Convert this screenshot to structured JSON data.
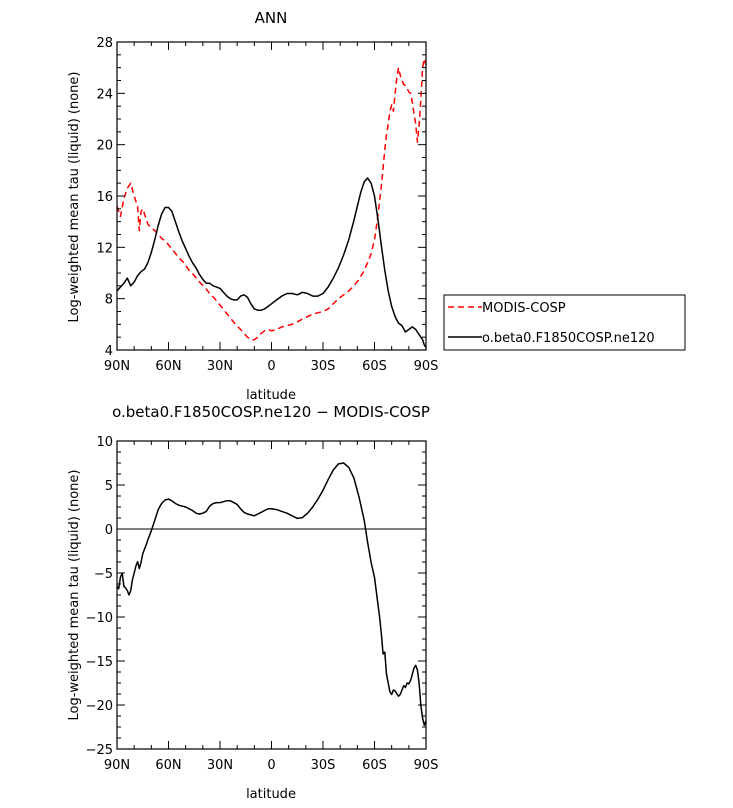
{
  "chart_data": [
    {
      "type": "line",
      "title": "ANN",
      "xlabel": "latitude",
      "ylabel": "Log-weighted mean tau (liquid) (none)",
      "xlim": [
        90,
        -90
      ],
      "ylim": [
        4,
        28
      ],
      "xticks": [
        90,
        60,
        30,
        0,
        -30,
        -60,
        -90
      ],
      "xtick_labels": [
        "90N",
        "60N",
        "30N",
        "0",
        "30S",
        "60S",
        "90S"
      ],
      "yticks": [
        4,
        8,
        12,
        16,
        20,
        24,
        28
      ],
      "ytick_labels": [
        "4",
        "8",
        "12",
        "16",
        "20",
        "24",
        "28"
      ],
      "legend_position": "right",
      "series": [
        {
          "name": "MODIS-COSP",
          "color": "#ff0000",
          "dash": "dashed",
          "x": [
            90,
            88,
            86,
            84,
            82,
            80,
            78,
            77,
            76,
            75,
            74,
            73,
            72,
            70,
            68,
            66,
            64,
            62,
            60,
            57,
            54,
            51,
            48,
            45,
            42,
            39,
            36,
            33,
            30,
            27,
            24,
            21,
            18,
            16,
            14,
            12,
            10,
            8,
            6,
            4,
            2,
            0,
            -3,
            -6,
            -9,
            -12,
            -15,
            -18,
            -21,
            -24,
            -27,
            -30,
            -33,
            -36,
            -39,
            -42,
            -45,
            -48,
            -51,
            -54,
            -56,
            -58,
            -60,
            -61,
            -62,
            -63,
            -64,
            -65,
            -66,
            -67,
            -68,
            -69,
            -70,
            -71,
            -72,
            -73,
            -74,
            -75,
            -76,
            -77,
            -78,
            -79,
            -80,
            -81,
            -82,
            -83,
            -84,
            -85,
            -86,
            -87,
            -88,
            -89,
            -90
          ],
          "y": [
            15.2,
            14.4,
            15.8,
            16.6,
            17.0,
            16.0,
            15.2,
            13.3,
            14.8,
            15.0,
            14.6,
            14.2,
            13.8,
            13.5,
            13.3,
            13.0,
            12.7,
            12.5,
            12.2,
            11.7,
            11.2,
            10.8,
            10.2,
            9.8,
            9.3,
            8.9,
            8.4,
            8.0,
            7.5,
            7.0,
            6.5,
            6.0,
            5.6,
            5.3,
            5.0,
            4.8,
            4.8,
            5.0,
            5.3,
            5.5,
            5.6,
            5.5,
            5.6,
            5.8,
            5.9,
            6.0,
            6.2,
            6.4,
            6.6,
            6.8,
            6.9,
            7.0,
            7.2,
            7.6,
            8.0,
            8.3,
            8.6,
            9.0,
            9.5,
            10.2,
            10.8,
            11.5,
            12.6,
            13.5,
            14.5,
            15.6,
            16.8,
            18.2,
            19.6,
            20.8,
            21.6,
            22.6,
            23.1,
            22.6,
            24.0,
            25.2,
            26.0,
            25.4,
            25.0,
            24.7,
            24.6,
            24.4,
            24.1,
            24.0,
            23.3,
            22.4,
            21.6,
            20.2,
            21.5,
            23.5,
            26.0,
            26.7,
            26.2
          ]
        },
        {
          "name": "o.beta0.F1850COSP.ne120",
          "color": "#000000",
          "dash": "solid",
          "x": [
            90,
            88,
            86,
            84,
            82,
            80,
            78,
            76,
            74,
            72,
            70,
            68,
            66,
            64,
            62,
            60,
            58,
            56,
            54,
            52,
            50,
            48,
            46,
            44,
            42,
            40,
            38,
            36,
            34,
            32,
            30,
            28,
            26,
            24,
            22,
            20,
            18,
            16,
            14,
            12,
            10,
            8,
            6,
            4,
            2,
            0,
            -3,
            -6,
            -9,
            -12,
            -15,
            -18,
            -21,
            -24,
            -27,
            -30,
            -33,
            -36,
            -39,
            -42,
            -45,
            -48,
            -50,
            -52,
            -54,
            -56,
            -58,
            -60,
            -62,
            -64,
            -66,
            -68,
            -70,
            -72,
            -74,
            -76,
            -78,
            -80,
            -82,
            -84,
            -86,
            -88,
            -89,
            -90
          ],
          "y": [
            8.6,
            8.9,
            9.2,
            9.6,
            9.0,
            9.3,
            9.8,
            10.1,
            10.3,
            10.8,
            11.6,
            12.6,
            13.7,
            14.6,
            15.1,
            15.1,
            14.8,
            14.0,
            13.2,
            12.5,
            11.9,
            11.3,
            10.8,
            10.4,
            9.9,
            9.5,
            9.2,
            9.2,
            9.0,
            8.9,
            8.8,
            8.5,
            8.2,
            8.0,
            7.9,
            7.9,
            8.2,
            8.3,
            8.1,
            7.6,
            7.2,
            7.1,
            7.1,
            7.2,
            7.4,
            7.6,
            7.9,
            8.2,
            8.4,
            8.4,
            8.3,
            8.5,
            8.4,
            8.2,
            8.2,
            8.4,
            8.9,
            9.6,
            10.4,
            11.4,
            12.6,
            14.1,
            15.2,
            16.3,
            17.1,
            17.4,
            17.0,
            16.0,
            14.2,
            12.1,
            10.2,
            8.6,
            7.4,
            6.6,
            6.1,
            5.9,
            5.4,
            5.6,
            5.8,
            5.6,
            5.2,
            4.8,
            4.4,
            4.2
          ]
        }
      ]
    },
    {
      "type": "line",
      "title": "o.beta0.F1850COSP.ne120 − MODIS-COSP",
      "xlabel": "latitude",
      "ylabel": "Log-weighted mean tau (liquid) (none)",
      "xlim": [
        90,
        -90
      ],
      "ylim": [
        -25,
        10
      ],
      "xticks": [
        90,
        60,
        30,
        0,
        -30,
        -60,
        -90
      ],
      "xtick_labels": [
        "90N",
        "60N",
        "30N",
        "0",
        "30S",
        "60S",
        "90S"
      ],
      "yticks": [
        10,
        5,
        0,
        -5,
        -10,
        -15,
        -20,
        -25
      ],
      "ytick_labels": [
        "10",
        "5",
        "0",
        "−5",
        "−10",
        "−15",
        "−20",
        "−25"
      ],
      "series": [
        {
          "color": "#000000",
          "dash": "solid",
          "x": [
            90,
            89,
            88,
            87,
            86,
            85,
            84,
            83,
            82,
            81,
            80,
            79,
            78,
            77,
            76,
            75,
            74,
            73,
            72,
            70,
            68,
            66,
            64,
            62,
            60,
            58,
            56,
            54,
            52,
            50,
            48,
            46,
            44,
            42,
            40,
            38,
            36,
            34,
            32,
            30,
            28,
            26,
            24,
            22,
            20,
            18,
            16,
            14,
            12,
            10,
            8,
            6,
            4,
            2,
            0,
            -3,
            -6,
            -9,
            -12,
            -15,
            -18,
            -21,
            -24,
            -27,
            -30,
            -33,
            -36,
            -39,
            -42,
            -45,
            -48,
            -51,
            -54,
            -56,
            -58,
            -60,
            -61,
            -62,
            -63,
            -64,
            -65,
            -66,
            -67,
            -68,
            -69,
            -70,
            -71,
            -72,
            -73,
            -74,
            -75,
            -76,
            -77,
            -78,
            -79,
            -80,
            -81,
            -82,
            -83,
            -84,
            -85,
            -86,
            -87,
            -88,
            -89,
            -90
          ],
          "y": [
            -6.5,
            -6.8,
            -5.5,
            -5.0,
            -6.5,
            -6.7,
            -7.0,
            -7.5,
            -7.0,
            -5.8,
            -5.0,
            -4.2,
            -3.7,
            -4.5,
            -3.8,
            -2.8,
            -2.3,
            -1.8,
            -1.2,
            -0.2,
            1.0,
            2.2,
            2.9,
            3.3,
            3.4,
            3.2,
            2.9,
            2.7,
            2.6,
            2.5,
            2.3,
            2.1,
            1.8,
            1.7,
            1.8,
            2.0,
            2.6,
            2.9,
            3.0,
            3.0,
            3.1,
            3.2,
            3.2,
            3.0,
            2.8,
            2.3,
            1.9,
            1.7,
            1.6,
            1.5,
            1.7,
            1.9,
            2.1,
            2.3,
            2.3,
            2.2,
            2.0,
            1.8,
            1.5,
            1.2,
            1.3,
            1.8,
            2.5,
            3.4,
            4.4,
            5.6,
            6.7,
            7.4,
            7.5,
            7.0,
            5.8,
            3.6,
            1.0,
            -1.5,
            -3.8,
            -5.5,
            -7.0,
            -8.5,
            -10.0,
            -12.0,
            -14.2,
            -14.0,
            -16.5,
            -17.5,
            -18.5,
            -18.8,
            -18.3,
            -18.4,
            -18.7,
            -19.0,
            -18.8,
            -18.3,
            -17.8,
            -18.0,
            -17.5,
            -17.6,
            -17.2,
            -16.5,
            -15.8,
            -15.5,
            -16.0,
            -17.5,
            -20.0,
            -21.5,
            -22.3,
            -21.8
          ]
        }
      ]
    }
  ]
}
